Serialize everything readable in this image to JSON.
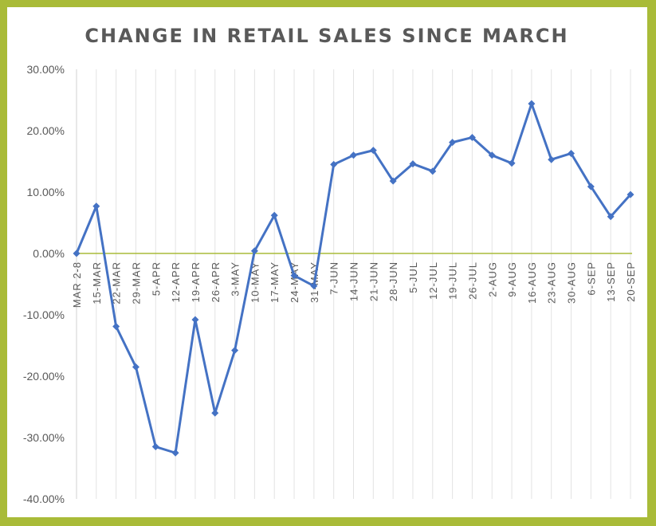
{
  "chart_data": {
    "type": "line",
    "title": "CHANGE IN RETAIL SALES SINCE MARCH",
    "xlabel": "",
    "ylabel": "",
    "ylim": [
      -0.4,
      0.3
    ],
    "ytick_values": [
      0.3,
      0.2,
      0.1,
      0.0,
      -0.1,
      -0.2,
      -0.3,
      -0.4
    ],
    "ytick_labels": [
      "30.00%",
      "20.00%",
      "10.00%",
      "0.00%",
      "-10.00%",
      "-20.00%",
      "-30.00%",
      "-40.00%"
    ],
    "grid": "vertical",
    "legend": "none",
    "categories": [
      "MAR 2-8",
      "15-MAR",
      "22-MAR",
      "29-MAR",
      "5-APR",
      "12-APR",
      "19-APR",
      "26-APR",
      "3-MAY",
      "10-MAY",
      "17-MAY",
      "24-MAY",
      "31-MAY",
      "7-JUN",
      "14-JUN",
      "21-JUN",
      "28-JUN",
      "5-JUL",
      "12-JUL",
      "19-JUL",
      "26-JUL",
      "2-AUG",
      "9-AUG",
      "16-AUG",
      "23-AUG",
      "30-AUG",
      "6-SEP",
      "13-SEP",
      "20-SEP"
    ],
    "series": [
      {
        "values": [
          0.0,
          0.077,
          -0.119,
          -0.185,
          -0.315,
          -0.325,
          -0.108,
          -0.26,
          -0.158,
          0.004,
          0.062,
          -0.036,
          -0.053,
          0.145,
          0.16,
          0.168,
          0.118,
          0.146,
          0.134,
          0.181,
          0.189,
          0.16,
          0.147,
          0.244,
          0.153,
          0.163,
          0.109,
          0.06,
          0.096
        ],
        "color": "#4472c4"
      }
    ],
    "colors": {
      "series": "#4472c4",
      "zero_line": "#a9bb38",
      "grid": "#e3e3e3",
      "text": "#595959",
      "border": "#a9bb38"
    }
  }
}
